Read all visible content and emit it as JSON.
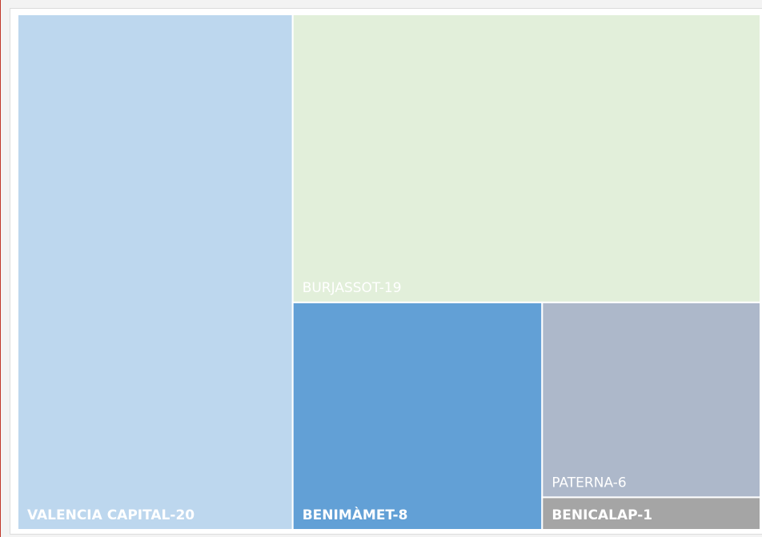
{
  "chart_data": {
    "type": "treemap",
    "values": [
      20,
      19,
      8,
      6,
      1
    ],
    "value_labels": [
      "VALENCIA CAPITAL-20",
      "BURJASSOT-19",
      "BENIMÀMET-8",
      "PATERNA-6",
      "BENICALAP-1"
    ],
    "colors": [
      "#bdd7ee",
      "#e2efda",
      "#62a0d6",
      "#adb8ca",
      "#a5a5a5"
    ],
    "bold": [
      true,
      false,
      true,
      false,
      true
    ]
  }
}
